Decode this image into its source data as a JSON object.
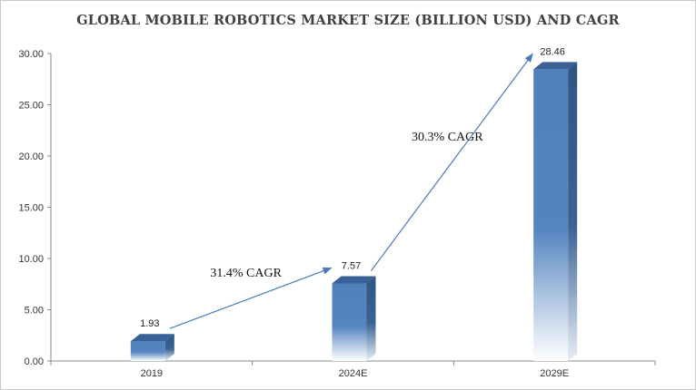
{
  "chart_data": {
    "type": "bar",
    "title": "GLOBAL MOBILE ROBOTICS MARKET SIZE (BILLION USD) AND CAGR",
    "categories": [
      "2019",
      "2024E",
      "2029E"
    ],
    "values": [
      1.93,
      7.57,
      28.46
    ],
    "value_labels": [
      "1.93",
      "7.57",
      "28.46"
    ],
    "ylim": [
      0,
      30
    ],
    "y_ticks": [
      "0.00",
      "5.00",
      "10.00",
      "15.00",
      "20.00",
      "25.00",
      "30.00"
    ],
    "xlabel": "",
    "ylabel": "",
    "grid": false,
    "annotations": [
      {
        "text": "31.4% CAGR",
        "from": "2019",
        "to": "2024E"
      },
      {
        "text": "30.3% CAGR",
        "from": "2024E",
        "to": "2029E"
      }
    ],
    "colors": {
      "bar_front": "#4f81bd",
      "bar_side": "#2e4f7a",
      "bar_top": "#3a6296",
      "arrow": "#4a7ab8"
    }
  }
}
